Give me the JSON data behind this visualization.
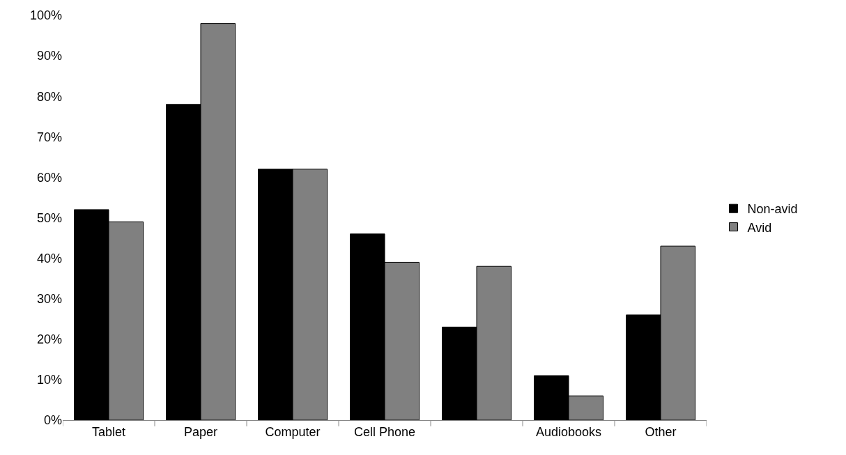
{
  "chart_data": {
    "type": "bar",
    "categories": [
      "Tablet",
      "Paper",
      "Computer",
      "Cell Phone",
      null,
      "Audiobooks",
      "Other"
    ],
    "series": [
      {
        "name": "Non-avid",
        "color": "#000000",
        "values": [
          52,
          78,
          62,
          46,
          23,
          11,
          26
        ]
      },
      {
        "name": "Avid",
        "color": "#808080",
        "values": [
          49,
          98,
          62,
          39,
          38,
          6,
          43
        ]
      }
    ],
    "ylim": [
      0,
      100
    ],
    "yticks": [
      {
        "value": 0,
        "label": "0%"
      },
      {
        "value": 10,
        "label": "10%"
      },
      {
        "value": 20,
        "label": "20%"
      },
      {
        "value": 30,
        "label": "30%"
      },
      {
        "value": 40,
        "label": "40%"
      },
      {
        "value": 50,
        "label": "50%"
      },
      {
        "value": 60,
        "label": "60%"
      },
      {
        "value": 70,
        "label": "70%"
      },
      {
        "value": 80,
        "label": "80%"
      },
      {
        "value": 90,
        "label": "90%"
      },
      {
        "value": 100,
        "label": "100%"
      }
    ],
    "grid": false,
    "legend": "right"
  }
}
